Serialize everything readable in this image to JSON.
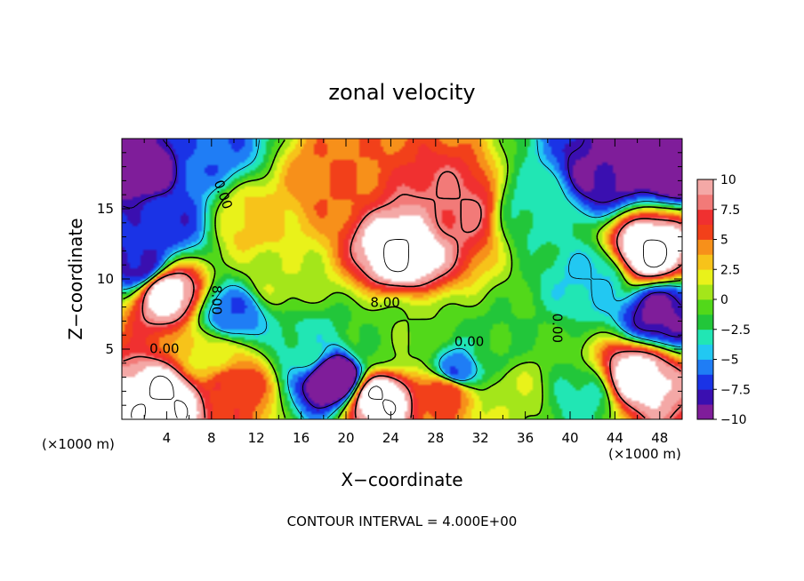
{
  "chart_data": {
    "type": "heatmap",
    "title": "zonal velocity",
    "xlabel": "X−coordinate",
    "ylabel": "Z−coordinate",
    "x_unit_left": "(×1000 m)",
    "x_unit_right": "(×1000 m)",
    "footer": "CONTOUR INTERVAL = 4.000E+00",
    "xlim": [
      0,
      50
    ],
    "ylim": [
      0,
      20
    ],
    "x_ticks": [
      4,
      8,
      12,
      16,
      20,
      24,
      28,
      32,
      36,
      40,
      44,
      48
    ],
    "x_tick_labels": [
      "4",
      "8",
      "12",
      "16",
      "20",
      "24",
      "28",
      "32",
      "36",
      "40",
      "44",
      "48"
    ],
    "y_ticks": [
      5,
      10,
      15
    ],
    "y_tick_labels": [
      "5",
      "10",
      "15"
    ],
    "colorbar": {
      "range": [
        -10,
        10
      ],
      "ticks": [
        10,
        7.5,
        5,
        2.5,
        0,
        -2.5,
        -5,
        -7.5,
        -10
      ],
      "tick_labels": [
        "10",
        "7.5",
        "5",
        "2.5",
        "0",
        "−2.5",
        "−5",
        "−7.5",
        "−10"
      ],
      "colors_low_to_high": [
        "#7f1d9a",
        "#3a0fb0",
        "#1a33e6",
        "#1f7df5",
        "#22c8f2",
        "#21e6b4",
        "#22c63a",
        "#52d81a",
        "#a4e61a",
        "#e9f21a",
        "#f7c31a",
        "#f7901a",
        "#f2401a",
        "#f03030",
        "#f27a78",
        "#f4a8a6"
      ],
      "above_max_color": "#ffffff"
    },
    "contour_labels": [
      {
        "text": "0.00",
        "x": 9.0,
        "z": 16.0
      },
      {
        "text": "8.00",
        "x": 8.4,
        "z": 8.5
      },
      {
        "text": "0.00",
        "x": 3.8,
        "z": 5.0
      },
      {
        "text": "8.00",
        "x": 23.5,
        "z": 8.3
      },
      {
        "text": "0.00",
        "x": 31.0,
        "z": 5.5
      },
      {
        "text": "0.00",
        "x": 38.8,
        "z": 6.5
      }
    ],
    "field_centers": [
      {
        "x": 25,
        "z": 12,
        "value": 12
      },
      {
        "x": 30,
        "z": 15,
        "value": 8
      },
      {
        "x": 19,
        "z": 17,
        "value": 5
      },
      {
        "x": 4,
        "z": 9,
        "value": 11
      },
      {
        "x": 4,
        "z": 1.5,
        "value": 12
      },
      {
        "x": 10,
        "z": 2.5,
        "value": 6
      },
      {
        "x": 46,
        "z": 3,
        "value": 11
      },
      {
        "x": 47,
        "z": 12,
        "value": 12
      },
      {
        "x": 23,
        "z": 1.5,
        "value": 12
      },
      {
        "x": 29,
        "z": 2,
        "value": 6
      },
      {
        "x": 1.5,
        "z": 18,
        "value": -10
      },
      {
        "x": 8,
        "z": 19.5,
        "value": -6
      },
      {
        "x": 4,
        "z": 14,
        "value": -7
      },
      {
        "x": 1.5,
        "z": 11,
        "value": -8
      },
      {
        "x": 10,
        "z": 7.5,
        "value": -6
      },
      {
        "x": 19,
        "z": 3,
        "value": -12
      },
      {
        "x": 16.5,
        "z": 5,
        "value": -3
      },
      {
        "x": 30,
        "z": 3.5,
        "value": -6
      },
      {
        "x": 22.5,
        "z": 5.5,
        "value": -1
      },
      {
        "x": 33,
        "z": 5,
        "value": -1.5
      },
      {
        "x": 43,
        "z": 17.5,
        "value": -9
      },
      {
        "x": 49,
        "z": 18.5,
        "value": -12
      },
      {
        "x": 42,
        "z": 10,
        "value": -4
      },
      {
        "x": 48,
        "z": 7.5,
        "value": -9
      },
      {
        "x": 41,
        "z": 1.5,
        "value": -3
      },
      {
        "x": 12,
        "z": 14,
        "value": 3
      },
      {
        "x": 14,
        "z": 10,
        "value": 1
      },
      {
        "x": 37,
        "z": 15,
        "value": -3
      },
      {
        "x": 26,
        "z": 5.8,
        "value": 0
      },
      {
        "x": 8,
        "z": 4.5,
        "value": 2
      },
      {
        "x": 35,
        "z": 2,
        "value": 1
      }
    ]
  }
}
